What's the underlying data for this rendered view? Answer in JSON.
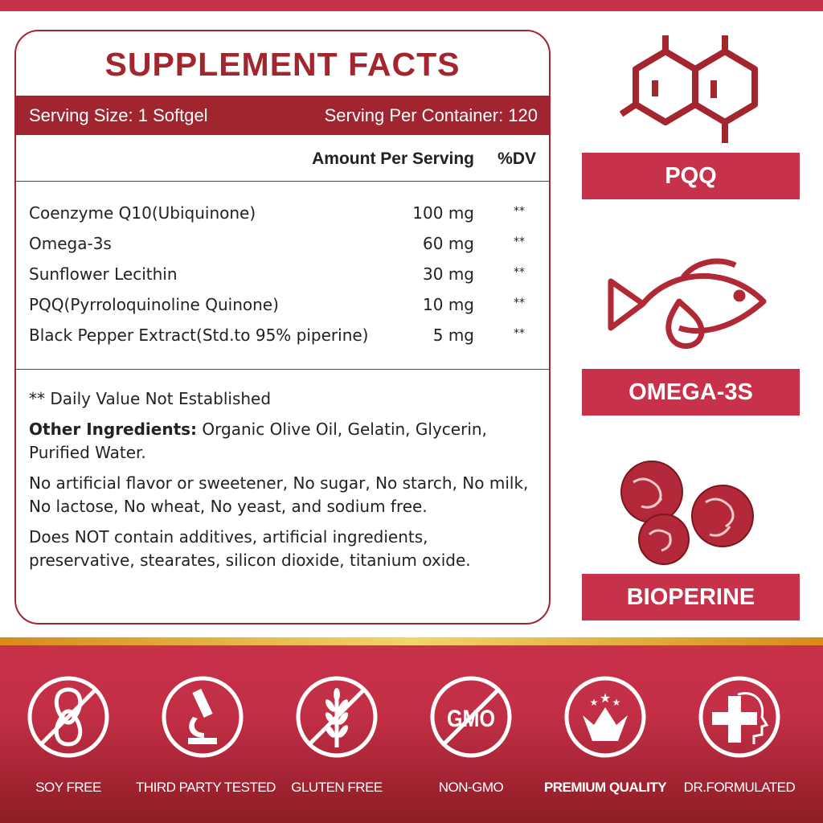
{
  "colors": {
    "primary": "#c8314a",
    "dark_red": "#a0252f",
    "gold": "#f3d36a"
  },
  "panel": {
    "title": "SUPPLEMENT FACTS",
    "serving_size": "Serving Size:  1 Softgel",
    "servings_per_container": "Serving Per Container: 120",
    "header": {
      "amount": "Amount Per Serving",
      "dv": "%DV"
    },
    "ingredients": [
      {
        "name": "Coenzyme Q10(Ubiquinone)",
        "amount": "100 mg",
        "dv": "**"
      },
      {
        "name": "Omega-3s",
        "amount": "60 mg",
        "dv": "**"
      },
      {
        "name": "Sunflower Lecithin",
        "amount": "30 mg",
        "dv": "**"
      },
      {
        "name": "PQQ(Pyrroloquinoline Quinone)",
        "amount": "10 mg",
        "dv": "**"
      },
      {
        "name": "Black Pepper Extract(Std.to 95% piperine)",
        "amount": "5 mg",
        "dv": "**"
      }
    ],
    "dv_note": "** Daily Value Not Established",
    "other_label": "Other Ingredients:",
    "other_text": " Organic Olive Oil, Gelatin, Glycerin, Purified Water.",
    "free_from": "No artificial flavor or sweetener, No sugar, No starch, No milk, No lactose, No wheat, No yeast, and sodium free.",
    "no_additives": "Does NOT contain additives, artificial ingredients, preservative, stearates, silicon dioxide, titanium oxide."
  },
  "features": [
    {
      "label": "PQQ",
      "icon": "molecule-icon"
    },
    {
      "label": "OMEGA-3S",
      "icon": "fish-drop-icon"
    },
    {
      "label": "BIOPERINE",
      "icon": "pepper-berries-icon"
    }
  ],
  "badges": [
    {
      "label": "SOY FREE",
      "icon": "soy-free-icon"
    },
    {
      "label": "THIRD PARTY TESTED",
      "icon": "microscope-icon"
    },
    {
      "label": "GLUTEN FREE",
      "icon": "wheat-free-icon"
    },
    {
      "label": "NON-GMO",
      "icon": "gmo-free-icon"
    },
    {
      "label": "PREMIUM QUALITY",
      "icon": "crown-stars-icon"
    },
    {
      "label": "DR.FORMULATED",
      "icon": "doctor-cross-icon"
    }
  ]
}
